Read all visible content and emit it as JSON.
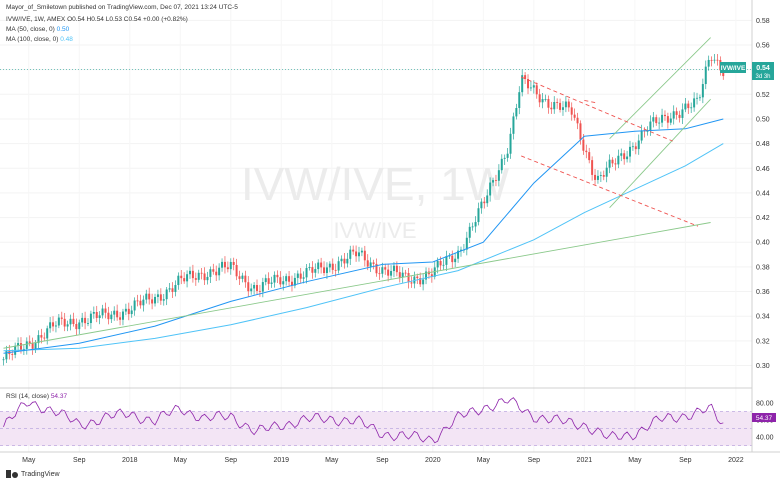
{
  "header": {
    "publisher": "Mayor_of_Smiletown published on TradingView.com, Dec 07, 2021 13:24 UTC-5",
    "symbol_line": "IVW/IVE, 1W, AMEX",
    "ohlc": "O0.54 H0.54 L0.53 C0.54 +0.00 (+0.82%)",
    "ma50_label": "MA (50, close, 0)",
    "ma50_value": "0.50",
    "ma100_label": "MA (100, close, 0)",
    "ma100_value": "0.48"
  },
  "watermark": {
    "main": "IVW/IVE, 1W",
    "sub": "IVW/IVE"
  },
  "price_badge": {
    "symbol": "IVW/IVE",
    "price": "0.54",
    "countdown": "3d 3h"
  },
  "rsi": {
    "label": "RSI (14, close)",
    "value": "54.37"
  },
  "footer": {
    "brand": "TradingView"
  },
  "colors": {
    "up": "#26a69a",
    "down": "#ef5350",
    "ma50": "#2196f3",
    "ma100": "#4fc3f7",
    "trend_green": "#8bc98b",
    "channel_red": "#ef5350",
    "rsi_line": "#8e24aa",
    "rsi_band": "#f3e5f5"
  },
  "chart_data": [
    {
      "type": "candlestick",
      "x_tick_labels": [
        "May",
        "Sep",
        "2018",
        "May",
        "Sep",
        "2019",
        "May",
        "Sep",
        "2020",
        "May",
        "Sep",
        "2021",
        "May",
        "Sep",
        "2022"
      ],
      "y_tick_labels": [
        "0.30",
        "0.32",
        "0.34",
        "0.36",
        "0.38",
        "0.40",
        "0.42",
        "0.44",
        "0.46",
        "0.48",
        "0.50",
        "0.52",
        "0.54",
        "0.56",
        "0.58"
      ],
      "ylim": [
        0.285,
        0.59
      ],
      "close_path": [
        [
          "2017-03",
          0.305
        ],
        [
          "2017-05",
          0.318
        ],
        [
          "2017-07",
          0.332
        ],
        [
          "2017-09",
          0.337
        ],
        [
          "2017-11",
          0.34
        ],
        [
          "2018-01",
          0.346
        ],
        [
          "2018-03",
          0.355
        ],
        [
          "2018-05",
          0.368
        ],
        [
          "2018-07",
          0.376
        ],
        [
          "2018-09",
          0.379
        ],
        [
          "2018-11",
          0.362
        ],
        [
          "2019-01",
          0.37
        ],
        [
          "2019-03",
          0.374
        ],
        [
          "2019-05",
          0.382
        ],
        [
          "2019-07",
          0.39
        ],
        [
          "2019-09",
          0.378
        ],
        [
          "2019-11",
          0.37
        ],
        [
          "2020-01",
          0.375
        ],
        [
          "2020-03",
          0.392
        ],
        [
          "2020-05",
          0.43
        ],
        [
          "2020-07",
          0.48
        ],
        [
          "2020-08",
          0.53
        ],
        [
          "2020-10",
          0.515
        ],
        [
          "2020-12",
          0.505
        ],
        [
          "2021-02",
          0.45
        ],
        [
          "2021-04",
          0.47
        ],
        [
          "2021-06",
          0.492
        ],
        [
          "2021-08",
          0.505
        ],
        [
          "2021-10",
          0.512
        ],
        [
          "2021-11",
          0.555
        ],
        [
          "2021-12",
          0.54
        ]
      ],
      "series": [
        {
          "name": "MA (50, close, 0)",
          "color": "#2196f3"
        },
        {
          "name": "MA (100, close, 0)",
          "color": "#4fc3f7"
        }
      ],
      "ma50_path": [
        [
          "2017-03",
          0.31
        ],
        [
          "2017-09",
          0.318
        ],
        [
          "2018-03",
          0.332
        ],
        [
          "2018-09",
          0.352
        ],
        [
          "2019-03",
          0.368
        ],
        [
          "2019-09",
          0.382
        ],
        [
          "2020-01",
          0.384
        ],
        [
          "2020-05",
          0.4
        ],
        [
          "2020-09",
          0.448
        ],
        [
          "2021-01",
          0.486
        ],
        [
          "2021-05",
          0.49
        ],
        [
          "2021-09",
          0.492
        ],
        [
          "2021-12",
          0.5
        ]
      ],
      "ma100_path": [
        [
          "2017-03",
          0.312
        ],
        [
          "2017-09",
          0.314
        ],
        [
          "2018-03",
          0.322
        ],
        [
          "2018-09",
          0.333
        ],
        [
          "2019-03",
          0.347
        ],
        [
          "2019-09",
          0.363
        ],
        [
          "2020-03",
          0.377
        ],
        [
          "2020-09",
          0.402
        ],
        [
          "2021-01",
          0.424
        ],
        [
          "2021-05",
          0.443
        ],
        [
          "2021-09",
          0.462
        ],
        [
          "2021-12",
          0.48
        ]
      ]
    },
    {
      "type": "line",
      "title": "RSI (14, close)",
      "y_tick_labels": [
        "40.00",
        "60.00",
        "80.00"
      ],
      "ylim": [
        25,
        88
      ],
      "band": [
        30,
        70
      ],
      "path": [
        [
          "2017-03",
          52
        ],
        [
          "2017-05",
          82
        ],
        [
          "2017-07",
          70
        ],
        [
          "2017-09",
          55
        ],
        [
          "2017-11",
          62
        ],
        [
          "2018-01",
          68
        ],
        [
          "2018-03",
          58
        ],
        [
          "2018-05",
          75
        ],
        [
          "2018-07",
          60
        ],
        [
          "2018-09",
          66
        ],
        [
          "2018-11",
          45
        ],
        [
          "2019-01",
          55
        ],
        [
          "2019-03",
          60
        ],
        [
          "2019-05",
          62
        ],
        [
          "2019-07",
          58
        ],
        [
          "2019-09",
          45
        ],
        [
          "2019-11",
          40
        ],
        [
          "2020-01",
          38
        ],
        [
          "2020-03",
          62
        ],
        [
          "2020-05",
          75
        ],
        [
          "2020-07",
          82
        ],
        [
          "2020-09",
          65
        ],
        [
          "2020-11",
          58
        ],
        [
          "2021-01",
          55
        ],
        [
          "2021-03",
          38
        ],
        [
          "2021-05",
          45
        ],
        [
          "2021-07",
          60
        ],
        [
          "2021-09",
          66
        ],
        [
          "2021-11",
          72
        ],
        [
          "2021-12",
          54.37
        ]
      ]
    }
  ]
}
